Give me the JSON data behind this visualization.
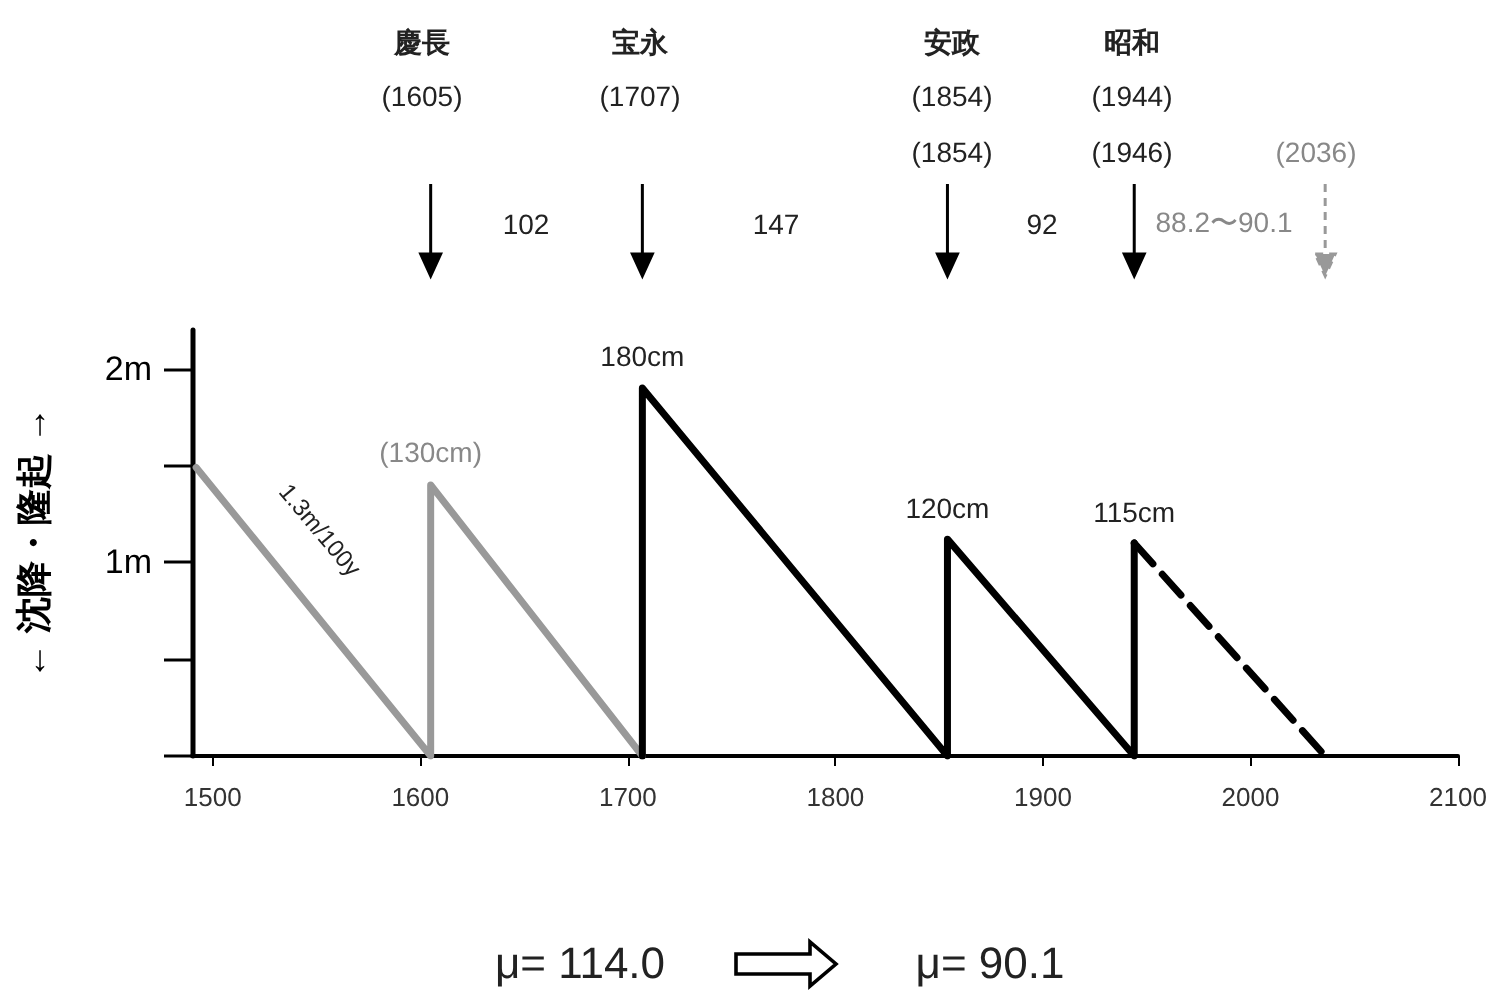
{
  "chart_data": {
    "type": "line",
    "ylabel": "← 沈降・隆起 →",
    "xlim": [
      1490,
      2100
    ],
    "xticks": [
      1500,
      1600,
      1700,
      1800,
      1900,
      2000,
      2100
    ],
    "ylim": [
      0,
      2.2
    ],
    "yticks": [
      {
        "value": 0,
        "label": null
      },
      {
        "value": 0.5,
        "label": null
      },
      {
        "value": 1,
        "label": "1m"
      },
      {
        "value": 1.5,
        "label": null
      },
      {
        "value": 2,
        "label": "2m"
      }
    ],
    "marker": "none",
    "line_style": "solid",
    "grid": false,
    "series": [
      {
        "color": "#999999",
        "x": [
          1492,
          1605,
          1605,
          1707
        ],
        "values": [
          1.49,
          0,
          1.4,
          0
        ]
      },
      {
        "color": "#000000",
        "x": [
          1707,
          1707,
          1854,
          1854,
          1944,
          1944
        ],
        "values": [
          0,
          1.9,
          0,
          1.12,
          0,
          1.1
        ]
      },
      {
        "color": "#000000",
        "line_style": "dashed",
        "x": [
          1944,
          2036
        ],
        "values": [
          1.1,
          0
        ]
      }
    ],
    "annotations": [
      "慶長",
      "(1605)",
      "宝永",
      "(1707)",
      "安政",
      "(1854)",
      "(1854)",
      "昭和",
      "(1944)",
      "(1946)",
      "(2036)",
      "102",
      "147",
      "92",
      "88.2〜90.1",
      {
        "text": "180cm",
        "x": 1707,
        "y": 1.9
      },
      {
        "text": "(130cm)",
        "x": 1605,
        "y": 1.4
      },
      {
        "text": "120cm",
        "x": 1854,
        "y": 1.12
      },
      {
        "text": "115cm",
        "x": 1944,
        "y": 1.1
      },
      "1.3m/100y",
      "μ= 114.0",
      "μ= 90.1"
    ]
  }
}
